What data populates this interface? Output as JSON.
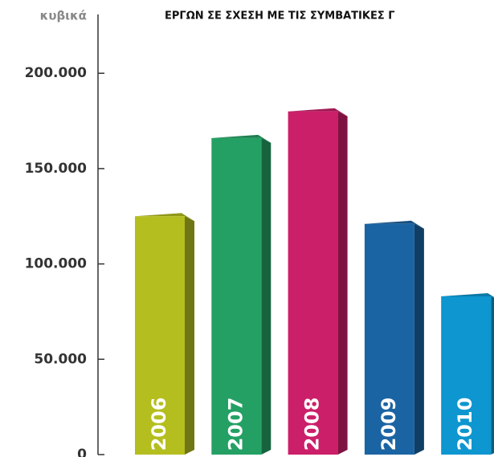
{
  "chart_data": {
    "type": "bar3d",
    "title": "ΕΡΓΩΝ ΣΕ ΣΧΕΣΗ ΜΕ ΤΙΣ ΣΥΜΒΑΤΙΚΕΣ Γ",
    "y_label": "κυβικά",
    "categories": [
      "2006",
      "2007",
      "2008",
      "2009",
      "2010"
    ],
    "values": [
      125000,
      166000,
      180000,
      121000,
      83000
    ],
    "colors": [
      "#b5be1f",
      "#24a064",
      "#cc1f69",
      "#1b64a3",
      "#0d96cf"
    ],
    "ylim": [
      0,
      230000
    ],
    "yticks": [
      {
        "value": 0,
        "label": "0"
      },
      {
        "value": 50000,
        "label": "50.000"
      },
      {
        "value": 100000,
        "label": "100.000"
      },
      {
        "value": 150000,
        "label": "150.000"
      },
      {
        "value": 200000,
        "label": "200.000"
      }
    ]
  }
}
